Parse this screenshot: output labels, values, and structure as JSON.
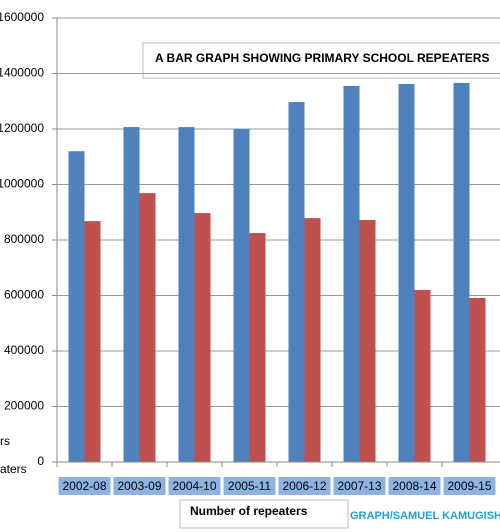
{
  "chart_data": {
    "type": "bar",
    "title": "A BAR GRAPH  SHOWING PRIMARY  SCHOOL REPEATERS",
    "x_label": "Number of repeaters",
    "annotation": "GRAPH/SAMUEL KAMUGISH",
    "categories": [
      "2002-08",
      "2003-09",
      "2004-10",
      "2005-11",
      "2006-12",
      "2007-13",
      "2008-14",
      "2009-15"
    ],
    "series": [
      {
        "name": "rs",
        "color": "#4f81bd",
        "values": [
          1120000,
          1207000,
          1207000,
          1200000,
          1297000,
          1355000,
          1362000,
          1366000
        ]
      },
      {
        "name": "aters",
        "color": "#c0504d",
        "values": [
          868000,
          969000,
          897000,
          825000,
          879000,
          872000,
          620000,
          591000
        ]
      }
    ],
    "ylim": [
      0,
      1600000
    ],
    "yticks": [
      0,
      200000,
      400000,
      600000,
      800000,
      1000000,
      1200000,
      1400000,
      1600000
    ],
    "grid": true
  }
}
